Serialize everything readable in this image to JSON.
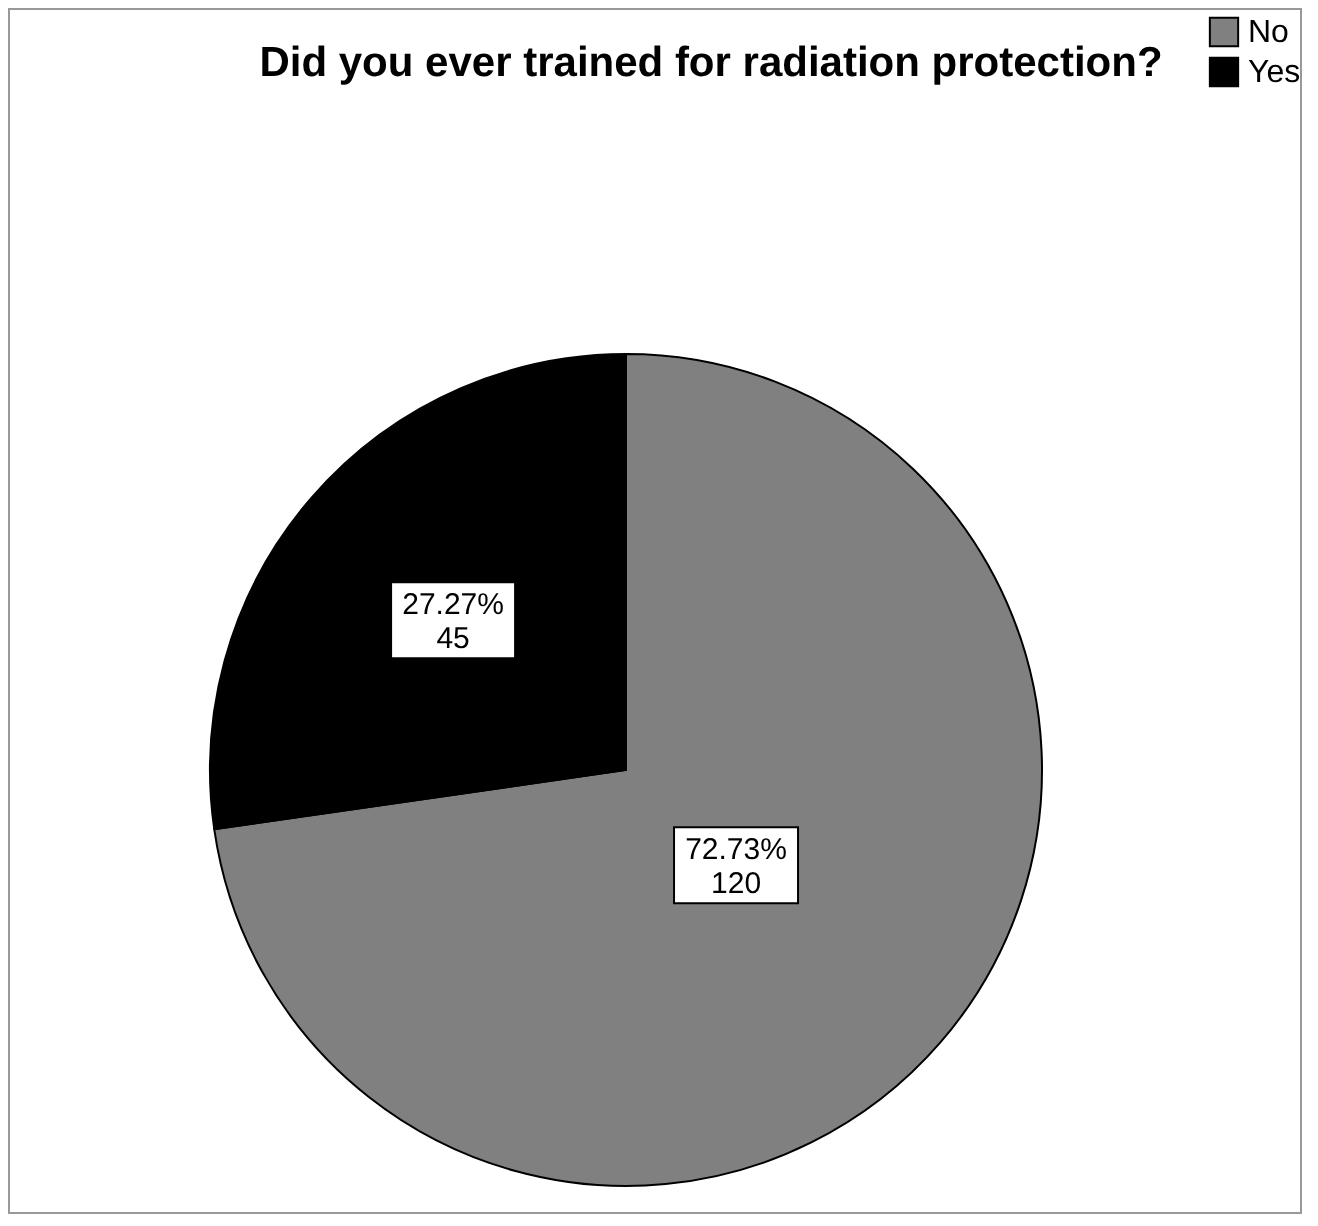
{
  "chart_data": {
    "type": "pie",
    "title": "Did you ever trained for radiation protection?",
    "categories": [
      "No",
      "Yes"
    ],
    "values": [
      120,
      45
    ],
    "colors": [
      "#808080",
      "#000000"
    ],
    "value_labels": [
      "72.73%\n120",
      "27.27%\n45"
    ],
    "legend": "top right"
  }
}
